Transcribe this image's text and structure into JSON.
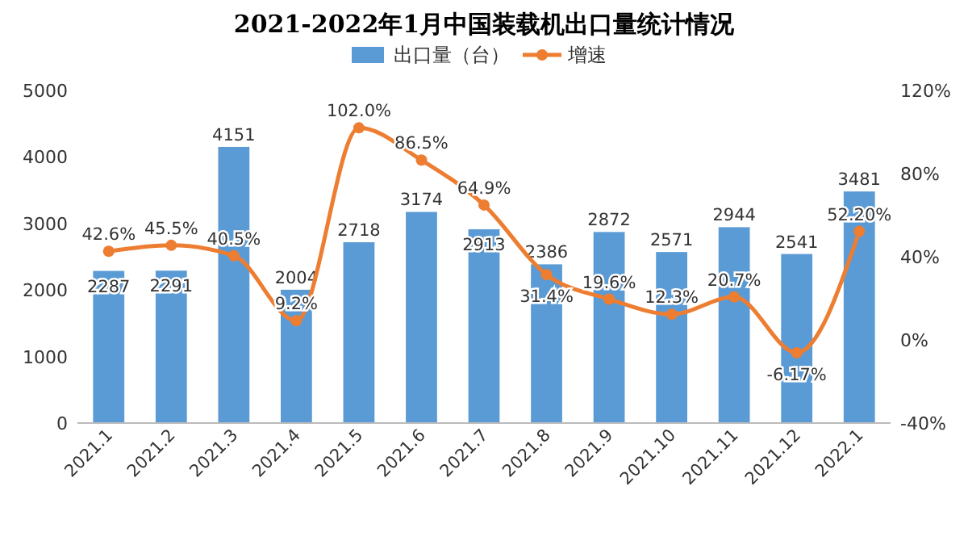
{
  "chart_data": {
    "type": "bar",
    "title": "2021-2022年1月中国装载机出口量统计情况",
    "categories": [
      "2021.1",
      "2021.2",
      "2021.3",
      "2021.4",
      "2021.5",
      "2021.6",
      "2021.7",
      "2021.8",
      "2021.9",
      "2021.10",
      "2021.11",
      "2021.12",
      "2022.1"
    ],
    "series": [
      {
        "name": "出口量（台）",
        "type": "bar",
        "color": "#5b9bd5",
        "values": [
          2287,
          2291,
          4151,
          2004,
          2718,
          3174,
          2913,
          2386,
          2872,
          2571,
          2944,
          2541,
          3481
        ],
        "value_labels": [
          "2287",
          "2291",
          "4151",
          "2004",
          "2718",
          "3174",
          "2913",
          "2386",
          "2872",
          "2571",
          "2944",
          "2541",
          "3481"
        ]
      },
      {
        "name": "增速",
        "type": "line",
        "axis": "y2",
        "color": "#ed7d31",
        "marker": "circle",
        "values": [
          42.6,
          45.5,
          40.5,
          9.2,
          102.0,
          86.5,
          64.9,
          31.4,
          19.6,
          12.3,
          20.7,
          -6.17,
          52.2
        ],
        "value_labels": [
          "42.6%",
          "45.5%",
          "40.5%",
          "9.2%",
          "102.0%",
          "86.5%",
          "64.9%",
          "31.4%",
          "19.6%",
          "12.3%",
          "20.7%",
          "-6.17%",
          "52.20%"
        ]
      }
    ],
    "ylim": [
      0,
      5000
    ],
    "yticks": [
      0,
      1000,
      2000,
      3000,
      4000,
      5000
    ],
    "y2lim": [
      -40,
      120
    ],
    "y2ticks": [
      {
        "value": -40,
        "label": "-40%"
      },
      {
        "value": 0,
        "label": "0%"
      },
      {
        "value": 40,
        "label": "40%"
      },
      {
        "value": 80,
        "label": "80%"
      },
      {
        "value": 120,
        "label": "120%"
      }
    ],
    "legend": "top",
    "grid": false
  }
}
